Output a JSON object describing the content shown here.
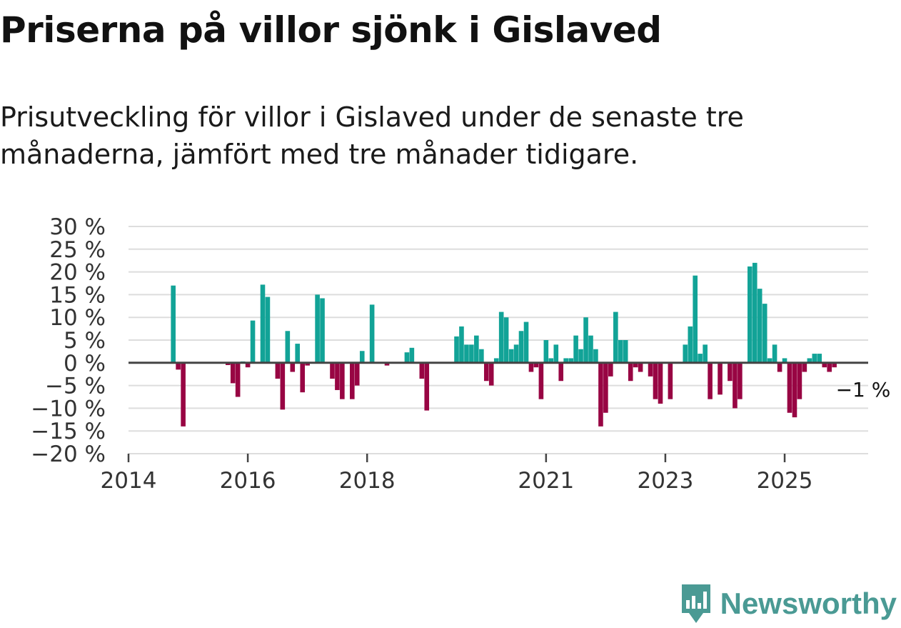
{
  "title": "Priserna på villor sjönk i Gislaved",
  "subtitle": "Prisutveckling för villor i Gislaved under de senaste tre månaderna, jämfört med tre månader tidigare.",
  "brand": "Newsworthy",
  "colors": {
    "positive": "#12a397",
    "negative": "#980543",
    "grid": "#dddddd",
    "zero": "#444444",
    "text": "#333333",
    "brand": "#4a9a94"
  },
  "chart_data": {
    "type": "bar",
    "ylim": [
      -20,
      30
    ],
    "xlim": [
      2014.0,
      2026.4
    ],
    "yticks": [
      {
        "value": 30,
        "label": "30 %"
      },
      {
        "value": 25,
        "label": "25 %"
      },
      {
        "value": 20,
        "label": "20 %"
      },
      {
        "value": 15,
        "label": "15 %"
      },
      {
        "value": 10,
        "label": "10 %"
      },
      {
        "value": 5,
        "label": "5 %"
      },
      {
        "value": 0,
        "label": "0 %"
      },
      {
        "value": -5,
        "label": "−5 %"
      },
      {
        "value": -10,
        "label": "−10 %"
      },
      {
        "value": -15,
        "label": "−15 %"
      },
      {
        "value": -20,
        "label": "−20 %"
      }
    ],
    "xticks": [
      {
        "value": 2014,
        "label": "2014"
      },
      {
        "value": 2016,
        "label": "2016"
      },
      {
        "value": 2018,
        "label": "2018"
      },
      {
        "value": 2021,
        "label": "2021"
      },
      {
        "value": 2023,
        "label": "2023"
      },
      {
        "value": 2025,
        "label": "2025"
      }
    ],
    "annotation": {
      "label": "−1 %",
      "x": 2026.0,
      "y": -1
    },
    "series": [
      {
        "name": "Prisutveckling",
        "points": [
          [
            2014.75,
            17
          ],
          [
            2014.833,
            -1.5
          ],
          [
            2014.917,
            -14
          ],
          [
            2015.667,
            -0.5
          ],
          [
            2015.75,
            -4.5
          ],
          [
            2015.833,
            -7.5
          ],
          [
            2015.917,
            0.3
          ],
          [
            2016.0,
            -1
          ],
          [
            2016.083,
            9.3
          ],
          [
            2016.25,
            17.2
          ],
          [
            2016.333,
            14.5
          ],
          [
            2016.5,
            -3.5
          ],
          [
            2016.583,
            -10.3
          ],
          [
            2016.667,
            7
          ],
          [
            2016.75,
            -2
          ],
          [
            2016.833,
            4.2
          ],
          [
            2016.917,
            -6.5
          ],
          [
            2017.0,
            -0.6
          ],
          [
            2017.167,
            15
          ],
          [
            2017.25,
            14.2
          ],
          [
            2017.417,
            -3.5
          ],
          [
            2017.5,
            -6
          ],
          [
            2017.583,
            -8
          ],
          [
            2017.75,
            -8
          ],
          [
            2017.833,
            -5
          ],
          [
            2017.917,
            2.6
          ],
          [
            2018.083,
            12.8
          ],
          [
            2018.333,
            -0.6
          ],
          [
            2018.667,
            2.3
          ],
          [
            2018.75,
            3.3
          ],
          [
            2018.917,
            -3.5
          ],
          [
            2019.0,
            -10.5
          ],
          [
            2019.5,
            5.8
          ],
          [
            2019.583,
            8
          ],
          [
            2019.667,
            4
          ],
          [
            2019.75,
            4
          ],
          [
            2019.833,
            6
          ],
          [
            2019.917,
            3
          ],
          [
            2020.0,
            -4
          ],
          [
            2020.083,
            -5
          ],
          [
            2020.167,
            1
          ],
          [
            2020.25,
            11.2
          ],
          [
            2020.333,
            10
          ],
          [
            2020.417,
            3
          ],
          [
            2020.5,
            4
          ],
          [
            2020.583,
            7
          ],
          [
            2020.667,
            9
          ],
          [
            2020.75,
            -2
          ],
          [
            2020.833,
            -1
          ],
          [
            2020.917,
            -8
          ],
          [
            2021.0,
            5
          ],
          [
            2021.083,
            1
          ],
          [
            2021.167,
            4
          ],
          [
            2021.25,
            -4
          ],
          [
            2021.333,
            1
          ],
          [
            2021.417,
            1
          ],
          [
            2021.5,
            6
          ],
          [
            2021.583,
            3
          ],
          [
            2021.667,
            10
          ],
          [
            2021.75,
            6
          ],
          [
            2021.833,
            3
          ],
          [
            2021.917,
            -14
          ],
          [
            2022.0,
            -11
          ],
          [
            2022.083,
            -3
          ],
          [
            2022.167,
            11.2
          ],
          [
            2022.25,
            5
          ],
          [
            2022.333,
            5
          ],
          [
            2022.417,
            -4
          ],
          [
            2022.5,
            -1
          ],
          [
            2022.583,
            -2
          ],
          [
            2022.75,
            -3
          ],
          [
            2022.833,
            -8
          ],
          [
            2022.917,
            -9
          ],
          [
            2023.083,
            -8
          ],
          [
            2023.333,
            4
          ],
          [
            2023.417,
            8
          ],
          [
            2023.5,
            19.2
          ],
          [
            2023.583,
            2
          ],
          [
            2023.667,
            4
          ],
          [
            2023.75,
            -8
          ],
          [
            2023.917,
            -7
          ],
          [
            2024.083,
            -4
          ],
          [
            2024.167,
            -10
          ],
          [
            2024.25,
            -8
          ],
          [
            2024.417,
            21.2
          ],
          [
            2024.5,
            22
          ],
          [
            2024.583,
            16.3
          ],
          [
            2024.667,
            13
          ],
          [
            2024.75,
            1
          ],
          [
            2024.833,
            4
          ],
          [
            2024.917,
            -2
          ],
          [
            2025.0,
            1
          ],
          [
            2025.083,
            -11
          ],
          [
            2025.167,
            -12
          ],
          [
            2025.25,
            -8
          ],
          [
            2025.333,
            -2
          ],
          [
            2025.417,
            1
          ],
          [
            2025.5,
            2
          ],
          [
            2025.583,
            2
          ],
          [
            2025.667,
            -1
          ],
          [
            2025.75,
            -2
          ],
          [
            2025.833,
            -1
          ]
        ]
      }
    ]
  }
}
